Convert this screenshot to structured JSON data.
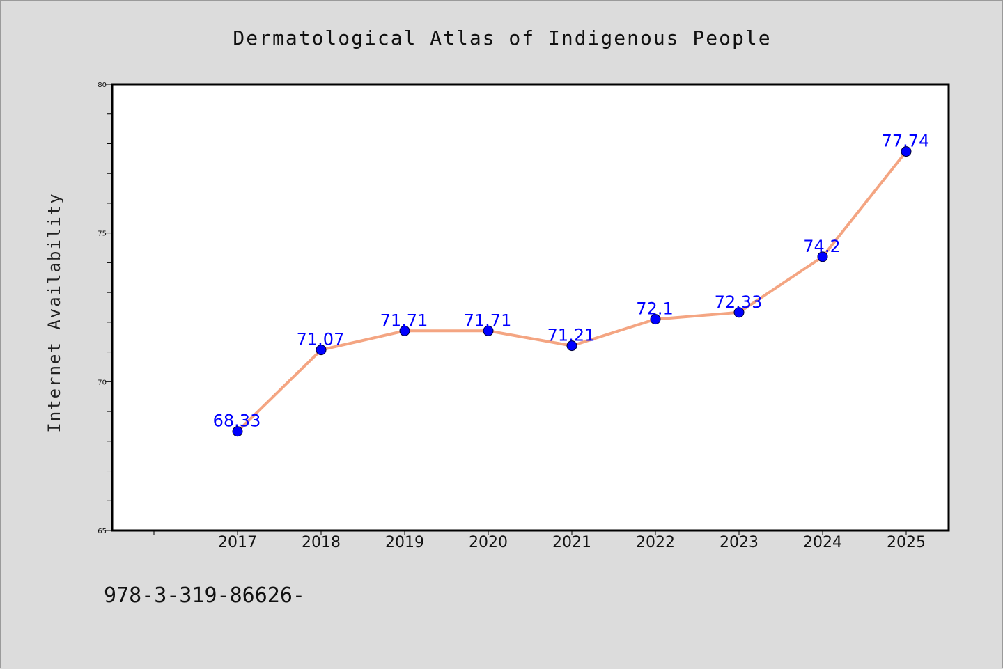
{
  "chart_data": {
    "type": "line",
    "title": "Dermatological Atlas of Indigenous People",
    "xlabel": "",
    "ylabel": "Internet Availability",
    "categories": [
      "2017",
      "2018",
      "2019",
      "2020",
      "2021",
      "2022",
      "2023",
      "2024",
      "2025"
    ],
    "series": [
      {
        "values": [
          68.33,
          71.07,
          71.71,
          71.71,
          71.21,
          72.1,
          72.33,
          74.2,
          77.74
        ],
        "labels": [
          "68.33",
          "71.07",
          "71.71",
          "71.71",
          "71.21",
          "72.1",
          "72.33",
          "74.2",
          "77.74"
        ],
        "line_color": "#f4a582",
        "marker_color": "#0000ff"
      }
    ],
    "ylim": [
      65,
      80
    ],
    "yticks": [
      "65",
      "70",
      "75",
      "80"
    ],
    "grid": false,
    "legend": "none"
  },
  "footer": {
    "text": "978-3-319-86626-"
  }
}
